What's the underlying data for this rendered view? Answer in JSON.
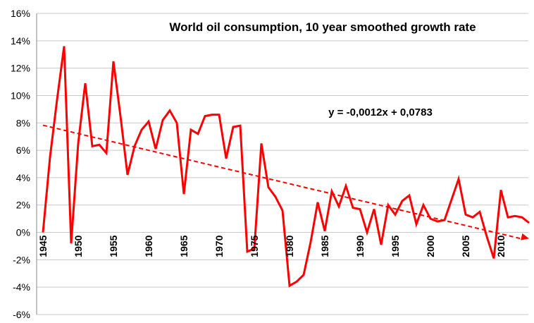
{
  "chart_data": {
    "type": "line",
    "title": "World oil consumption, 10 year smoothed growth rate",
    "trendline_label": "y = -0,0012x + 0,0783",
    "ylim": [
      -6,
      16
    ],
    "yticks": [
      -6,
      -4,
      -2,
      0,
      2,
      4,
      6,
      8,
      10,
      12,
      14,
      16
    ],
    "ytick_labels": [
      "-6%",
      "-4%",
      "-2%",
      "0%",
      "2%",
      "4%",
      "6%",
      "8%",
      "10%",
      "12%",
      "14%",
      "16%"
    ],
    "xlim": [
      1945,
      2013
    ],
    "xticks": [
      1945,
      1950,
      1955,
      1960,
      1965,
      1970,
      1975,
      1980,
      1985,
      1990,
      1995,
      2000,
      2005,
      2010
    ],
    "xtick_labels": [
      "1945",
      "1950",
      "1955",
      "1960",
      "1965",
      "1970",
      "1975",
      "1980",
      "1985",
      "1990",
      "1995",
      "2000",
      "2005",
      "2010"
    ],
    "grid": true,
    "colors": {
      "series": "#ff0000",
      "grid": "#c8c8c8"
    },
    "series": [
      {
        "x": [
          1945,
          1946,
          1947,
          1948,
          1949,
          1950,
          1951,
          1952,
          1953,
          1954,
          1955,
          1956,
          1957,
          1958,
          1959,
          1960,
          1961,
          1962,
          1963,
          1964,
          1965,
          1966,
          1967,
          1968,
          1969,
          1970,
          1971,
          1972,
          1973,
          1974,
          1975,
          1976,
          1977,
          1978,
          1979,
          1980,
          1981,
          1982,
          1983,
          1984,
          1985,
          1986,
          1987,
          1988,
          1989,
          1990,
          1991,
          1992,
          1993,
          1994,
          1995,
          1996,
          1997,
          1998,
          1999,
          2000,
          2001,
          2002,
          2003,
          2004,
          2005,
          2006,
          2007,
          2008,
          2009,
          2010,
          2011,
          2012,
          2013,
          2014
        ],
        "values": [
          0.0,
          5.5,
          9.7,
          13.6,
          -0.8,
          6.5,
          10.9,
          6.3,
          6.4,
          5.8,
          12.5,
          8.5,
          4.2,
          6.3,
          7.5,
          8.1,
          6.1,
          8.2,
          8.9,
          8.0,
          2.8,
          7.5,
          7.2,
          8.5,
          8.6,
          8.6,
          5.4,
          7.7,
          7.8,
          -1.4,
          -1.2,
          6.5,
          3.3,
          2.6,
          1.6,
          -3.9,
          -3.6,
          -3.1,
          -0.7,
          2.2,
          0.1,
          3.0,
          1.9,
          3.4,
          1.8,
          1.7,
          0.0,
          1.7,
          -0.9,
          2.0,
          1.3,
          2.3,
          2.7,
          0.6,
          2.0,
          1.0,
          0.8,
          0.9,
          2.4,
          3.9,
          1.3,
          1.1,
          1.5,
          -0.3,
          -1.9,
          3.1,
          1.1,
          1.2,
          1.1,
          0.7
        ]
      }
    ],
    "trendline": {
      "slope_per_year": -0.12,
      "intercept_1945": 7.83,
      "x_range": [
        1945,
        2014
      ]
    }
  }
}
